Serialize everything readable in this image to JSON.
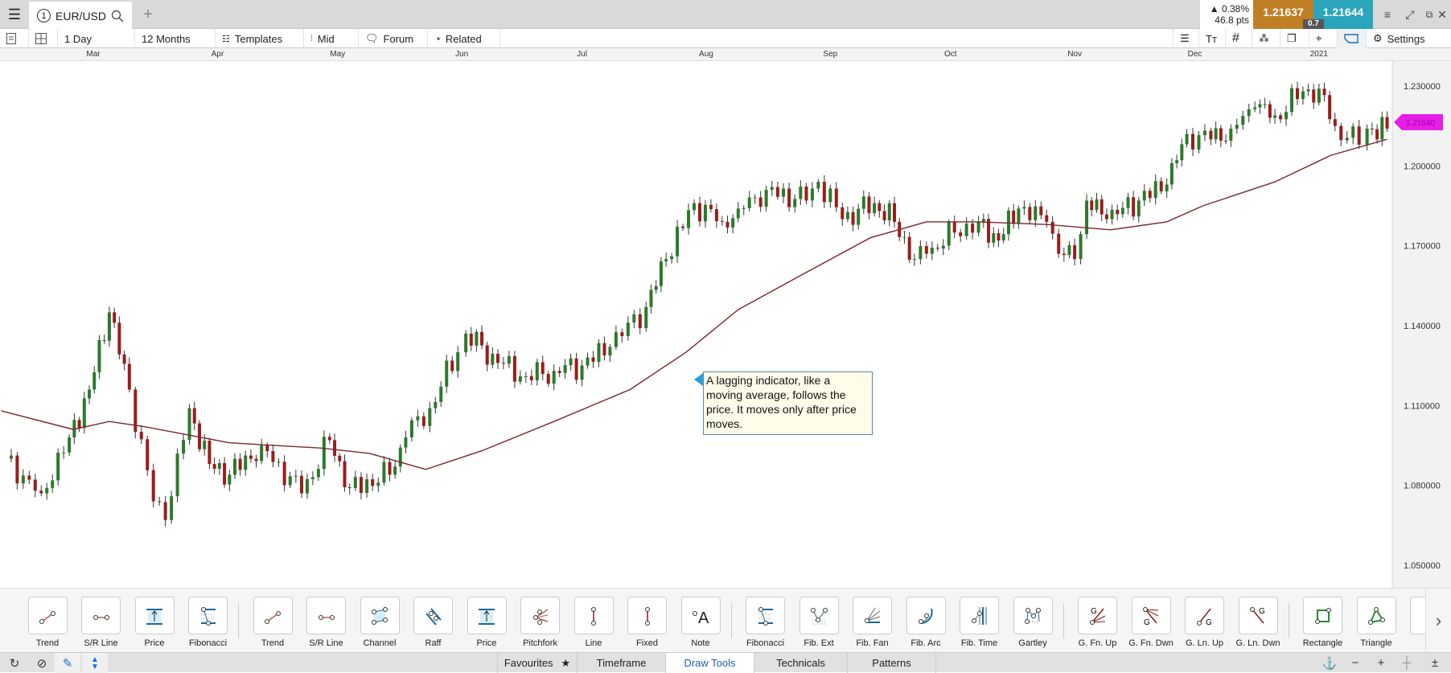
{
  "tabbar": {
    "menu_icon": "hamburger-icon",
    "tab_number": "1",
    "symbol": "EUR/USD",
    "search_icon": "search-icon",
    "add_icon": "plus-icon"
  },
  "quote": {
    "change": "▲ 0.38%",
    "points": "46.8 pts",
    "bid": "1.21637",
    "ask": "1.21644",
    "spread": "0.7",
    "bid_color": "#c07f25",
    "ask_color": "#2aa5bb"
  },
  "window": {
    "buttons": [
      "drag-handle-icon",
      "expand-icon",
      "popout-icon",
      "close-icon"
    ]
  },
  "toolbar": {
    "interval": "1 Day",
    "range": "12 Months",
    "templates": "Templates",
    "price_type": "Mid",
    "forum": "Forum",
    "related": "Related",
    "settings": "Settings"
  },
  "chart_data": {
    "type": "candlestick",
    "symbol": "EUR/USD",
    "months": [
      {
        "label": "Mar",
        "date": "2020-03-01"
      },
      {
        "label": "Apr",
        "date": "2020-04-01"
      },
      {
        "label": "May",
        "date": "2020-05-01"
      },
      {
        "label": "Jun",
        "date": "2020-06-01"
      },
      {
        "label": "Jul",
        "date": "2020-07-01"
      },
      {
        "label": "Aug",
        "date": "2020-08-01"
      },
      {
        "label": "Sep",
        "date": "2020-09-01"
      },
      {
        "label": "Oct",
        "date": "2020-10-01"
      },
      {
        "label": "Nov",
        "date": "2020-11-01"
      },
      {
        "label": "Dec",
        "date": "2020-12-01"
      },
      {
        "label": "2021",
        "date": "2021-01-01"
      }
    ],
    "y_ticks": [
      "1.230000",
      "1.200000",
      "1.170000",
      "1.140000",
      "1.110000",
      "1.080000",
      "1.050000"
    ],
    "ylim": [
      1.05,
      1.23
    ],
    "current_price": "1.21640",
    "current_price_color": "#e61ee6",
    "up_color": "#2b7a2b",
    "down_color": "#9c1c1c",
    "ma_color": "#7a2630",
    "closes": [
      [
        "2020-02-08",
        1.09
      ],
      [
        "2020-02-17",
        1.077
      ],
      [
        "2020-02-24",
        1.098
      ],
      [
        "2020-02-29",
        1.116
      ],
      [
        "2020-03-05",
        1.145
      ],
      [
        "2020-03-10",
        1.116
      ],
      [
        "2020-03-16",
        1.074
      ],
      [
        "2020-03-19",
        1.067
      ],
      [
        "2020-03-25",
        1.109
      ],
      [
        "2020-03-30",
        1.088
      ],
      [
        "2020-04-04",
        1.084
      ],
      [
        "2020-04-12",
        1.095
      ],
      [
        "2020-04-22",
        1.077
      ],
      [
        "2020-04-29",
        1.097
      ],
      [
        "2020-05-04",
        1.079
      ],
      [
        "2020-05-14",
        1.084
      ],
      [
        "2020-05-18",
        1.098
      ],
      [
        "2020-05-24",
        1.109
      ],
      [
        "2020-05-31",
        1.13
      ],
      [
        "2020-06-02",
        1.137
      ],
      [
        "2020-06-10",
        1.126
      ],
      [
        "2020-06-17",
        1.121
      ],
      [
        "2020-06-24",
        1.123
      ],
      [
        "2020-07-01",
        1.125
      ],
      [
        "2020-07-08",
        1.132
      ],
      [
        "2020-07-17",
        1.147
      ],
      [
        "2020-07-22",
        1.165
      ],
      [
        "2020-07-29",
        1.186
      ],
      [
        "2020-08-05",
        1.179
      ],
      [
        "2020-08-09",
        1.184
      ],
      [
        "2020-08-16",
        1.191
      ],
      [
        "2020-08-26",
        1.187
      ],
      [
        "2020-08-29",
        1.194
      ],
      [
        "2020-09-04",
        1.18
      ],
      [
        "2020-09-12",
        1.186
      ],
      [
        "2020-09-17",
        1.179
      ],
      [
        "2020-09-22",
        1.165
      ],
      [
        "2020-09-25",
        1.167
      ],
      [
        "2020-10-02",
        1.175
      ],
      [
        "2020-10-08",
        1.179
      ],
      [
        "2020-10-13",
        1.172
      ],
      [
        "2020-10-18",
        1.184
      ],
      [
        "2020-10-25",
        1.179
      ],
      [
        "2020-10-28",
        1.167
      ],
      [
        "2020-11-01",
        1.165
      ],
      [
        "2020-11-04",
        1.187
      ],
      [
        "2020-11-09",
        1.18
      ],
      [
        "2020-11-17",
        1.187
      ],
      [
        "2020-11-24",
        1.193
      ],
      [
        "2020-11-29",
        1.212
      ],
      [
        "2020-12-05",
        1.21
      ],
      [
        "2020-12-10",
        1.214
      ],
      [
        "2020-12-16",
        1.222
      ],
      [
        "2020-12-21",
        1.219
      ],
      [
        "2020-12-28",
        1.228
      ],
      [
        "2021-01-01",
        1.229
      ],
      [
        "2021-01-05",
        1.215
      ],
      [
        "2021-01-11",
        1.208
      ],
      [
        "2021-01-13",
        1.214
      ],
      [
        "2021-01-18",
        1.214
      ]
    ],
    "moving_average": [
      [
        "2020-02-07",
        1.108
      ],
      [
        "2020-02-25",
        1.101
      ],
      [
        "2020-03-05",
        1.104
      ],
      [
        "2020-03-14",
        1.102
      ],
      [
        "2020-04-04",
        1.096
      ],
      [
        "2020-04-27",
        1.094
      ],
      [
        "2020-05-09",
        1.092
      ],
      [
        "2020-05-23",
        1.086
      ],
      [
        "2020-06-06",
        1.093
      ],
      [
        "2020-06-24",
        1.104
      ],
      [
        "2020-07-13",
        1.116
      ],
      [
        "2020-07-27",
        1.13
      ],
      [
        "2020-08-09",
        1.146
      ],
      [
        "2020-08-26",
        1.16
      ],
      [
        "2020-09-11",
        1.173
      ],
      [
        "2020-09-25",
        1.179
      ],
      [
        "2020-10-08",
        1.179
      ],
      [
        "2020-10-25",
        1.178
      ],
      [
        "2020-11-10",
        1.176
      ],
      [
        "2020-11-24",
        1.179
      ],
      [
        "2020-12-03",
        1.185
      ],
      [
        "2020-12-21",
        1.194
      ],
      [
        "2021-01-04",
        1.204
      ],
      [
        "2021-01-18",
        1.21
      ]
    ],
    "annotation": "A lagging indicator, like a moving average, follows the price. It moves only after price moves."
  },
  "draw_tools": {
    "groups": [
      [
        {
          "label": "Trend",
          "icon": "trend"
        },
        {
          "label": "S/R Line",
          "icon": "sr"
        },
        {
          "label": "Price",
          "icon": "price"
        },
        {
          "label": "Fibonacci",
          "icon": "fib"
        }
      ],
      [
        {
          "label": "Trend",
          "icon": "trend"
        },
        {
          "label": "S/R Line",
          "icon": "sr"
        },
        {
          "label": "Channel",
          "icon": "channel"
        },
        {
          "label": "Raff",
          "icon": "raff"
        },
        {
          "label": "Price",
          "icon": "price"
        },
        {
          "label": "Pitchfork",
          "icon": "pitchfork"
        },
        {
          "label": "Line",
          "icon": "vline"
        },
        {
          "label": "Fixed",
          "icon": "fixed"
        },
        {
          "label": "Note",
          "icon": "note"
        }
      ],
      [
        {
          "label": "Fibonacci",
          "icon": "fib"
        },
        {
          "label": "Fib. Ext",
          "icon": "fibext"
        },
        {
          "label": "Fib. Fan",
          "icon": "fibfan"
        },
        {
          "label": "Fib. Arc",
          "icon": "fibarc"
        },
        {
          "label": "Fib. Time",
          "icon": "fibtime"
        },
        {
          "label": "Gartley",
          "icon": "gartley"
        }
      ],
      [
        {
          "label": "G. Fn. Up",
          "icon": "gfnup"
        },
        {
          "label": "G. Fn. Dwn",
          "icon": "gfndn"
        },
        {
          "label": "G. Ln. Up",
          "icon": "glnup"
        },
        {
          "label": "G. Ln. Dwn",
          "icon": "glndn"
        }
      ],
      [
        {
          "label": "Rectangle",
          "icon": "rect"
        },
        {
          "label": "Triangle",
          "icon": "triangle"
        },
        {
          "label": "",
          "icon": "ellipse"
        }
      ]
    ],
    "next_icon": "chevron-right-icon"
  },
  "bottom": {
    "tabs": [
      {
        "label": "Favourites",
        "star": "★"
      },
      {
        "label": "Timeframe"
      },
      {
        "label": "Draw Tools",
        "active": true
      },
      {
        "label": "Technicals"
      },
      {
        "label": "Patterns"
      }
    ]
  }
}
